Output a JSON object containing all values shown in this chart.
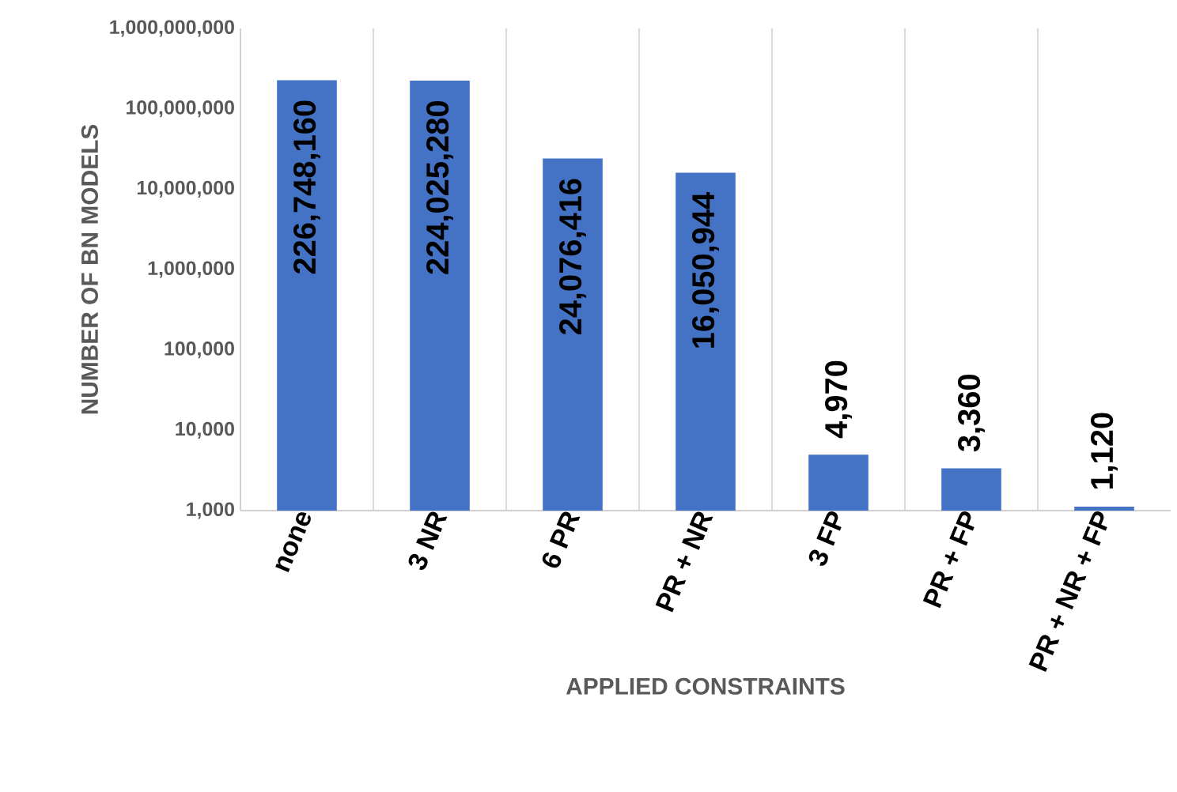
{
  "chart_data": {
    "type": "bar",
    "xlabel": "APPLIED CONSTRAINTS",
    "ylabel": "NUMBER OF BN MODELS",
    "categories": [
      "none",
      "3 NR",
      "6 PR",
      "PR + NR",
      "3 FP",
      "PR + FP",
      "PR + NR + FP"
    ],
    "values": [
      226748160,
      224025280,
      24076416,
      16050944,
      4970,
      3360,
      1120
    ],
    "value_labels": [
      "226,748,160",
      "224,025,280",
      "24,076,416",
      "16,050,944",
      "4,970",
      "3,360",
      "1,120"
    ],
    "color": "#4472c4",
    "log": "y",
    "grid": "x",
    "ylim": [
      1000,
      1000000000
    ],
    "yticks": [
      {
        "value": 1000,
        "label": "1,000"
      },
      {
        "value": 10000,
        "label": "10,000"
      },
      {
        "value": 100000,
        "label": "100,000"
      },
      {
        "value": 1000000,
        "label": "1,000,000"
      },
      {
        "value": 10000000,
        "label": "10,000,000"
      },
      {
        "value": 100000000,
        "label": "100,000,000"
      },
      {
        "value": 1000000000,
        "label": "1,000,000,000"
      }
    ]
  }
}
